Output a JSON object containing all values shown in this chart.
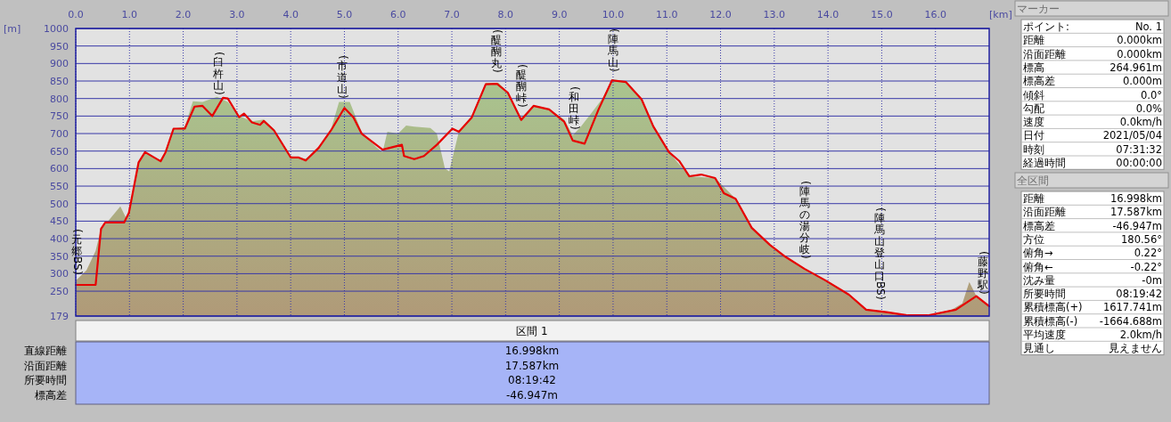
{
  "chart_data": [
    {
      "type": "area",
      "xlabel": "[km]",
      "ylabel": "[m]",
      "xlim": [
        0,
        17
      ],
      "ylim": [
        179,
        1000
      ],
      "xticks": [
        {
          "value": 0,
          "label": "0.0"
        },
        {
          "value": 1,
          "label": "1.0"
        },
        {
          "value": 2,
          "label": "2.0"
        },
        {
          "value": 3,
          "label": "3.0"
        },
        {
          "value": 4,
          "label": "4.0"
        },
        {
          "value": 5,
          "label": "5.0"
        },
        {
          "value": 6,
          "label": "6.0"
        },
        {
          "value": 7,
          "label": "7.0"
        },
        {
          "value": 8,
          "label": "8.0"
        },
        {
          "value": 9,
          "label": "9.0"
        },
        {
          "value": 10,
          "label": "10.0"
        },
        {
          "value": 11,
          "label": "11.0"
        },
        {
          "value": 12,
          "label": "12.0"
        },
        {
          "value": 13,
          "label": "13.0"
        },
        {
          "value": 14,
          "label": "14.0"
        },
        {
          "value": 15,
          "label": "15.0"
        },
        {
          "value": 16,
          "label": "16.0"
        }
      ],
      "yticks": [
        179,
        250,
        300,
        350,
        400,
        450,
        500,
        550,
        600,
        650,
        700,
        750,
        800,
        850,
        900,
        950,
        1000
      ],
      "grid": true,
      "series": [
        {
          "type": "area",
          "color": "#a9c58f",
          "x": [
            0,
            0.2,
            0.37,
            0.47,
            0.6,
            0.83,
            0.95,
            1.08,
            1.17,
            1.29,
            1.58,
            1.67,
            1.82,
            2.03,
            2.18,
            2.36,
            2.63,
            2.83,
            3.04,
            3.28,
            3.5,
            3.69,
            4.0,
            4.28,
            4.52,
            4.75,
            4.9,
            5.1,
            5.32,
            5.6,
            5.71,
            5.8,
            6.0,
            6.15,
            6.3,
            6.6,
            6.72,
            6.87,
            6.95,
            7.13,
            7.37,
            7.63,
            7.87,
            8.04,
            8.29,
            8.52,
            8.81,
            9.09,
            9.25,
            9.4,
            9.6,
            9.8,
            9.98,
            10.24,
            10.53,
            10.75,
            11.04,
            11.42,
            11.9,
            12.28,
            12.58,
            12.92,
            13.21,
            13.56,
            13.95,
            14.39,
            14.71,
            15.09,
            15.48,
            15.86,
            16.3,
            16.5,
            16.63,
            16.76,
            16.998
          ],
          "values": [
            280,
            310,
            365,
            428,
            450,
            492,
            455,
            546,
            618,
            647,
            621,
            646,
            714,
            720,
            792,
            790,
            805,
            790,
            750,
            735,
            740,
            712,
            635,
            628,
            660,
            712,
            790,
            790,
            705,
            660,
            647,
            705,
            700,
            723,
            720,
            716,
            700,
            601,
            592,
            705,
            750,
            845,
            845,
            817,
            745,
            780,
            770,
            740,
            695,
            720,
            759,
            800,
            855,
            850,
            800,
            720,
            647,
            578,
            573,
            514,
            431,
            382,
            348,
            314,
            281,
            240,
            197,
            190,
            181,
            181,
            197,
            215,
            276,
            236,
            207
          ]
        },
        {
          "type": "line",
          "color": "#e60000",
          "x": [
            0,
            0.37,
            0.47,
            0.55,
            0.75,
            0.9,
            0.99,
            1.08,
            1.17,
            1.29,
            1.58,
            1.67,
            1.82,
            2.03,
            2.21,
            2.36,
            2.54,
            2.74,
            2.83,
            3.04,
            3.13,
            3.28,
            3.43,
            3.5,
            3.69,
            4.0,
            4.14,
            4.28,
            4.52,
            4.75,
            5.0,
            5.17,
            5.32,
            5.71,
            6.07,
            6.11,
            6.3,
            6.48,
            6.72,
            7.01,
            7.13,
            7.37,
            7.63,
            7.84,
            8.04,
            8.29,
            8.52,
            8.81,
            9.09,
            9.25,
            9.47,
            9.73,
            9.98,
            10.24,
            10.53,
            10.75,
            11.04,
            11.23,
            11.42,
            11.64,
            11.9,
            12.06,
            12.28,
            12.58,
            12.92,
            13.21,
            13.56,
            13.95,
            14.39,
            14.71,
            15.09,
            15.48,
            15.86,
            16.38,
            16.76,
            16.998
          ],
          "values": [
            268,
            268,
            428,
            446,
            446,
            446,
            474,
            546,
            618,
            647,
            621,
            646,
            714,
            714,
            777,
            779,
            750,
            802,
            800,
            747,
            757,
            732,
            725,
            736,
            709,
            632,
            632,
            623,
            659,
            709,
            773,
            746,
            700,
            654,
            668,
            636,
            627,
            636,
            668,
            714,
            705,
            746,
            841,
            842,
            817,
            739,
            779,
            769,
            734,
            680,
            671,
            769,
            852,
            847,
            798,
            720,
            647,
            622,
            578,
            583,
            573,
            530,
            514,
            431,
            382,
            348,
            314,
            281,
            240,
            197,
            190,
            181,
            181,
            197,
            236,
            207
          ]
        }
      ],
      "annotations": [
        "(元郷BS)",
        "(臼杵山)",
        "(市道山)",
        "(醍醐丸)",
        "(醍醐峠)",
        "(和田峠)",
        "(陣馬山)",
        "(陣馬の湯分岐)",
        "(陣馬山登山口BS)",
        "(藤野駅)"
      ]
    },
    {
      "type": "other",
      "title": "区間 1",
      "annotations": [
        "直線距離",
        "16.998km",
        "沿面距離",
        "17.587km",
        "所要時間",
        "08:19:42",
        "標高差",
        "-46.947m"
      ]
    },
    {
      "type": "other",
      "title": "マーカー",
      "annotations": [
        "ポイント:",
        "No. 1",
        "距離",
        "0.000km",
        "沿面距離",
        "0.000km",
        "標高",
        "264.961m",
        "標高差",
        "0.000m",
        "傾斜",
        "0.0°",
        "勾配",
        "0.0%",
        "速度",
        "0.0km/h",
        "日付",
        "2021/05/04",
        "時刻",
        "07:31:32",
        "経過時間",
        "00:00:00"
      ]
    },
    {
      "type": "other",
      "title": "全区間",
      "annotations": [
        "距離",
        "16.998km",
        "沿面距離",
        "17.587km",
        "標高差",
        "-46.947m",
        "方位",
        "180.56°",
        "俯角→",
        "0.22°",
        "俯角←",
        "-0.22°",
        "沈み量",
        "-0m",
        "所要時間",
        "08:19:42",
        "累積標高(+)",
        "1617.741m",
        "累積標高(-)",
        "-1664.688m",
        "平均速度",
        "2.0km/h",
        "見通し",
        "見えません"
      ]
    }
  ]
}
